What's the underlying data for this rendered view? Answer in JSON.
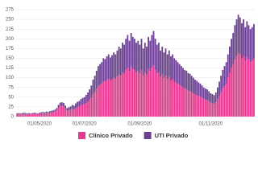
{
  "chart_data": {
    "type": "stacked_bar",
    "categories": [
      null,
      null,
      null,
      null,
      null,
      null,
      null,
      null,
      null,
      null,
      null,
      null,
      null,
      "01/05/2020",
      null,
      null,
      null,
      null,
      null,
      null,
      null,
      null,
      null,
      null,
      null,
      null,
      null,
      null,
      null,
      null,
      null,
      null,
      null,
      null,
      null,
      null,
      null,
      null,
      null,
      "01/07/2020",
      null,
      null,
      null,
      null,
      null,
      null,
      null,
      null,
      null,
      null,
      null,
      null,
      null,
      null,
      null,
      null,
      null,
      null,
      null,
      null,
      null,
      null,
      null,
      null,
      null,
      null,
      null,
      null,
      null,
      null,
      null,
      "01/09/2020",
      null,
      null,
      null,
      null,
      null,
      null,
      null,
      null,
      null,
      null,
      null,
      null,
      null,
      null,
      null,
      null,
      null,
      null,
      null,
      null,
      null,
      null,
      null,
      null,
      null,
      null,
      null,
      null,
      null,
      null,
      null,
      null,
      null,
      null,
      null,
      null,
      null,
      null,
      null,
      null,
      "01/11/2020",
      null,
      null,
      null,
      null,
      null,
      null,
      null,
      null,
      null,
      null,
      null,
      null,
      null,
      null,
      null,
      null,
      null,
      null,
      null,
      null,
      null,
      null,
      null,
      null,
      null
    ],
    "series": [
      {
        "name": "Clínico Privado",
        "color": "#e5398d",
        "values": [
          6,
          7,
          6,
          7,
          7,
          7,
          6,
          7,
          6,
          7,
          7,
          7,
          6,
          7,
          8,
          9,
          8,
          9,
          9,
          10,
          11,
          11,
          13,
          16,
          22,
          27,
          28,
          26,
          21,
          15,
          16,
          17,
          20,
          18,
          22,
          25,
          26,
          29,
          31,
          32,
          35,
          38,
          43,
          49,
          58,
          64,
          72,
          79,
          82,
          85,
          91,
          90,
          94,
          97,
          92,
          96,
          100,
          97,
          103,
          108,
          105,
          114,
          111,
          120,
          126,
          117,
          129,
          123,
          120,
          114,
          117,
          111,
          120,
          105,
          114,
          108,
          123,
          117,
          126,
          132,
          120,
          111,
          114,
          102,
          108,
          99,
          105,
          96,
          102,
          93,
          96,
          90,
          87,
          84,
          81,
          78,
          75,
          72,
          71,
          67,
          66,
          63,
          60,
          57,
          55,
          53,
          51,
          48,
          45,
          43,
          42,
          39,
          36,
          35,
          33,
          37,
          45,
          54,
          63,
          72,
          78,
          84,
          100,
          112,
          125,
          134,
          147,
          156,
          164,
          160,
          150,
          156,
          144,
          153,
          147,
          140,
          144,
          149
        ]
      },
      {
        "name": "UTI Privado",
        "color": "#6b3f91",
        "values": [
          2,
          2,
          2,
          2,
          3,
          2,
          2,
          2,
          2,
          2,
          3,
          2,
          2,
          3,
          3,
          3,
          3,
          4,
          3,
          4,
          4,
          5,
          5,
          6,
          8,
          9,
          9,
          9,
          7,
          7,
          8,
          9,
          10,
          10,
          12,
          13,
          14,
          16,
          17,
          18,
          21,
          24,
          27,
          31,
          37,
          41,
          46,
          51,
          53,
          55,
          59,
          58,
          61,
          63,
          60,
          62,
          65,
          63,
          67,
          72,
          70,
          76,
          74,
          80,
          84,
          78,
          86,
          82,
          80,
          76,
          78,
          74,
          80,
          70,
          76,
          72,
          82,
          78,
          84,
          88,
          80,
          74,
          76,
          68,
          72,
          66,
          70,
          64,
          68,
          62,
          64,
          60,
          58,
          56,
          54,
          52,
          50,
          48,
          47,
          45,
          44,
          42,
          40,
          38,
          37,
          35,
          34,
          32,
          30,
          29,
          28,
          26,
          24,
          23,
          22,
          25,
          30,
          36,
          42,
          48,
          52,
          56,
          60,
          68,
          75,
          81,
          88,
          94,
          98,
          95,
          90,
          94,
          86,
          92,
          88,
          85,
          86,
          89
        ]
      }
    ],
    "ylim": [
      0,
      275
    ],
    "yticks": [
      0,
      25,
      50,
      75,
      100,
      125,
      150,
      175,
      200,
      225,
      250,
      275
    ],
    "grid": true,
    "legend": "bottom"
  }
}
